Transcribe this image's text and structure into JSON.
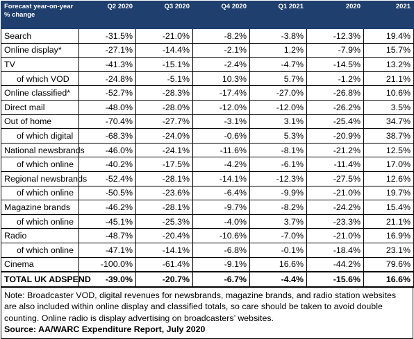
{
  "chart_data": {
    "type": "table",
    "title": "",
    "header_label_line1": "Forecast year-on-year",
    "header_label_line2": "% change",
    "columns": [
      "Q2 2020",
      "Q3 2020",
      "Q4 2020",
      "Q1 2021",
      "2020",
      "2021"
    ],
    "rows": [
      {
        "label": "Search",
        "indent": false,
        "bold": false,
        "values": [
          "-31.5%",
          "-21.0%",
          "-8.2%",
          "-3.8%",
          "-12.3%",
          "19.4%"
        ]
      },
      {
        "label": "Online display*",
        "indent": false,
        "bold": false,
        "values": [
          "-27.1%",
          "-14.4%",
          "-2.1%",
          "1.2%",
          "-7.9%",
          "15.7%"
        ]
      },
      {
        "label": "TV",
        "indent": false,
        "bold": false,
        "values": [
          "-41.3%",
          "-15.1%",
          "-2.4%",
          "-4.7%",
          "-14.5%",
          "13.2%"
        ]
      },
      {
        "label": "of which VOD",
        "indent": true,
        "bold": false,
        "values": [
          "-24.8%",
          "-5.1%",
          "10.3%",
          "5.7%",
          "-1.2%",
          "21.1%"
        ]
      },
      {
        "label": "Online classified*",
        "indent": false,
        "bold": false,
        "values": [
          "-52.7%",
          "-28.3%",
          "-17.4%",
          "-27.0%",
          "-26.8%",
          "10.6%"
        ]
      },
      {
        "label": "Direct mail",
        "indent": false,
        "bold": false,
        "values": [
          "-48.0%",
          "-28.0%",
          "-12.0%",
          "-12.0%",
          "-26.2%",
          "3.5%"
        ]
      },
      {
        "label": "Out of home",
        "indent": false,
        "bold": false,
        "values": [
          "-70.4%",
          "-27.7%",
          "-3.1%",
          "3.1%",
          "-25.4%",
          "34.7%"
        ]
      },
      {
        "label": "of which digital",
        "indent": true,
        "bold": false,
        "values": [
          "-68.3%",
          "-24.0%",
          "-0.6%",
          "5.3%",
          "-20.9%",
          "38.7%"
        ]
      },
      {
        "label": "National newsbrands",
        "indent": false,
        "bold": false,
        "values": [
          "-46.0%",
          "-24.1%",
          "-11.6%",
          "-8.1%",
          "-21.2%",
          "12.5%"
        ]
      },
      {
        "label": "of which online",
        "indent": true,
        "bold": false,
        "values": [
          "-40.2%",
          "-17.5%",
          "-4.2%",
          "-6.1%",
          "-11.4%",
          "17.0%"
        ]
      },
      {
        "label": "Regional newsbrands",
        "indent": false,
        "bold": false,
        "values": [
          "-52.4%",
          "-28.1%",
          "-14.1%",
          "-12.3%",
          "-27.5%",
          "12.6%"
        ]
      },
      {
        "label": "of which online",
        "indent": true,
        "bold": false,
        "values": [
          "-50.5%",
          "-23.6%",
          "-6.4%",
          "-9.9%",
          "-21.0%",
          "19.7%"
        ]
      },
      {
        "label": "Magazine brands",
        "indent": false,
        "bold": false,
        "values": [
          "-46.2%",
          "-28.1%",
          "-9.7%",
          "-8.2%",
          "-24.2%",
          "15.4%"
        ]
      },
      {
        "label": "of which online",
        "indent": true,
        "bold": false,
        "values": [
          "-45.1%",
          "-25.3%",
          "-4.0%",
          "3.7%",
          "-23.3%",
          "21.1%"
        ]
      },
      {
        "label": "Radio",
        "indent": false,
        "bold": false,
        "values": [
          "-48.7%",
          "-20.4%",
          "-10.6%",
          "-7.0%",
          "-21.0%",
          "16.9%"
        ]
      },
      {
        "label": "of which online",
        "indent": true,
        "bold": false,
        "values": [
          "-47.1%",
          "-14.1%",
          "-6.8%",
          "-0.1%",
          "-18.4%",
          "23.1%"
        ]
      },
      {
        "label": "Cinema",
        "indent": false,
        "bold": false,
        "values": [
          "-100.0%",
          "-61.4%",
          "-9.1%",
          "16.6%",
          "-44.2%",
          "79.6%"
        ]
      },
      {
        "label": "TOTAL UK ADSPEND",
        "indent": false,
        "bold": true,
        "values": [
          "-39.0%",
          "-20.7%",
          "-6.7%",
          "-4.4%",
          "-15.6%",
          "16.6%"
        ]
      }
    ],
    "note": "Note: Broadcaster VOD, digital revenues for newsbrands, magazine brands, and radio station websites are also included within online display and classified totals, so care should be taken to avoid double counting. Online radio is display advertising on broadcasters’ websites.",
    "source": "Source: AA/WARC Expenditure Report, July 2020",
    "colors": {
      "header_bg": "#1f3f6e",
      "header_text": "#ffffff"
    }
  }
}
